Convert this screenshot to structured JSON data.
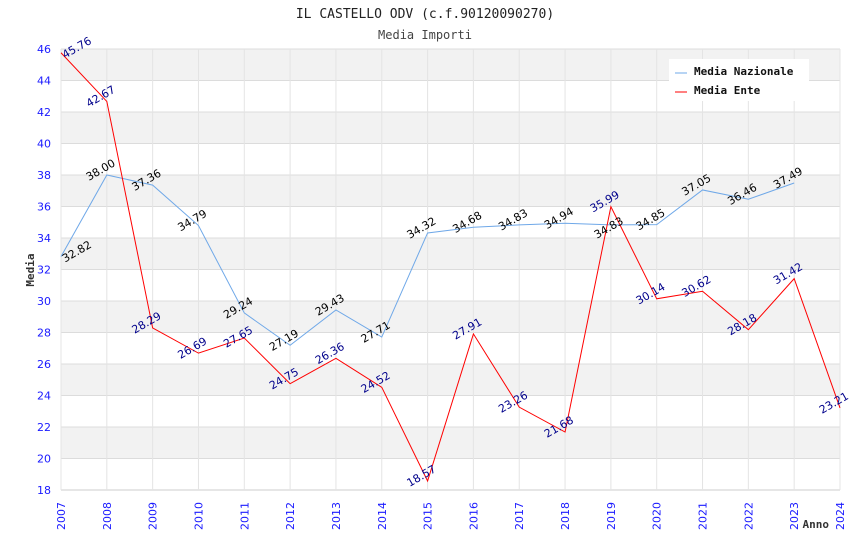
{
  "chart_data": {
    "type": "line",
    "title": "IL CASTELLO ODV (c.f.90120090270)",
    "subtitle": "Media Importi",
    "xlabel": "Anno",
    "ylabel": "Media",
    "ylim": [
      18,
      46
    ],
    "yticks": [
      18,
      20,
      22,
      24,
      26,
      28,
      30,
      32,
      34,
      36,
      38,
      40,
      42,
      44,
      46
    ],
    "x": [
      2007,
      2008,
      2009,
      2010,
      2011,
      2012,
      2013,
      2014,
      2015,
      2016,
      2017,
      2018,
      2019,
      2020,
      2021,
      2022,
      2023,
      2024
    ],
    "legend_position": "top-right",
    "grid": true,
    "series": [
      {
        "name": "Media Nazionale",
        "color": "#6fa8e8",
        "label_color": "#000000",
        "values": [
          32.82,
          38.0,
          37.36,
          34.79,
          29.24,
          27.19,
          29.43,
          27.71,
          34.32,
          34.68,
          34.83,
          34.94,
          34.83,
          34.85,
          37.05,
          36.46,
          37.49,
          null
        ]
      },
      {
        "name": "Media Ente",
        "color": "#ff0000",
        "label_color": "#00008b",
        "values": [
          45.76,
          42.67,
          28.29,
          26.69,
          27.65,
          24.75,
          26.36,
          24.52,
          18.57,
          27.91,
          23.26,
          21.68,
          35.99,
          30.14,
          30.62,
          28.18,
          31.42,
          23.21
        ]
      }
    ]
  }
}
